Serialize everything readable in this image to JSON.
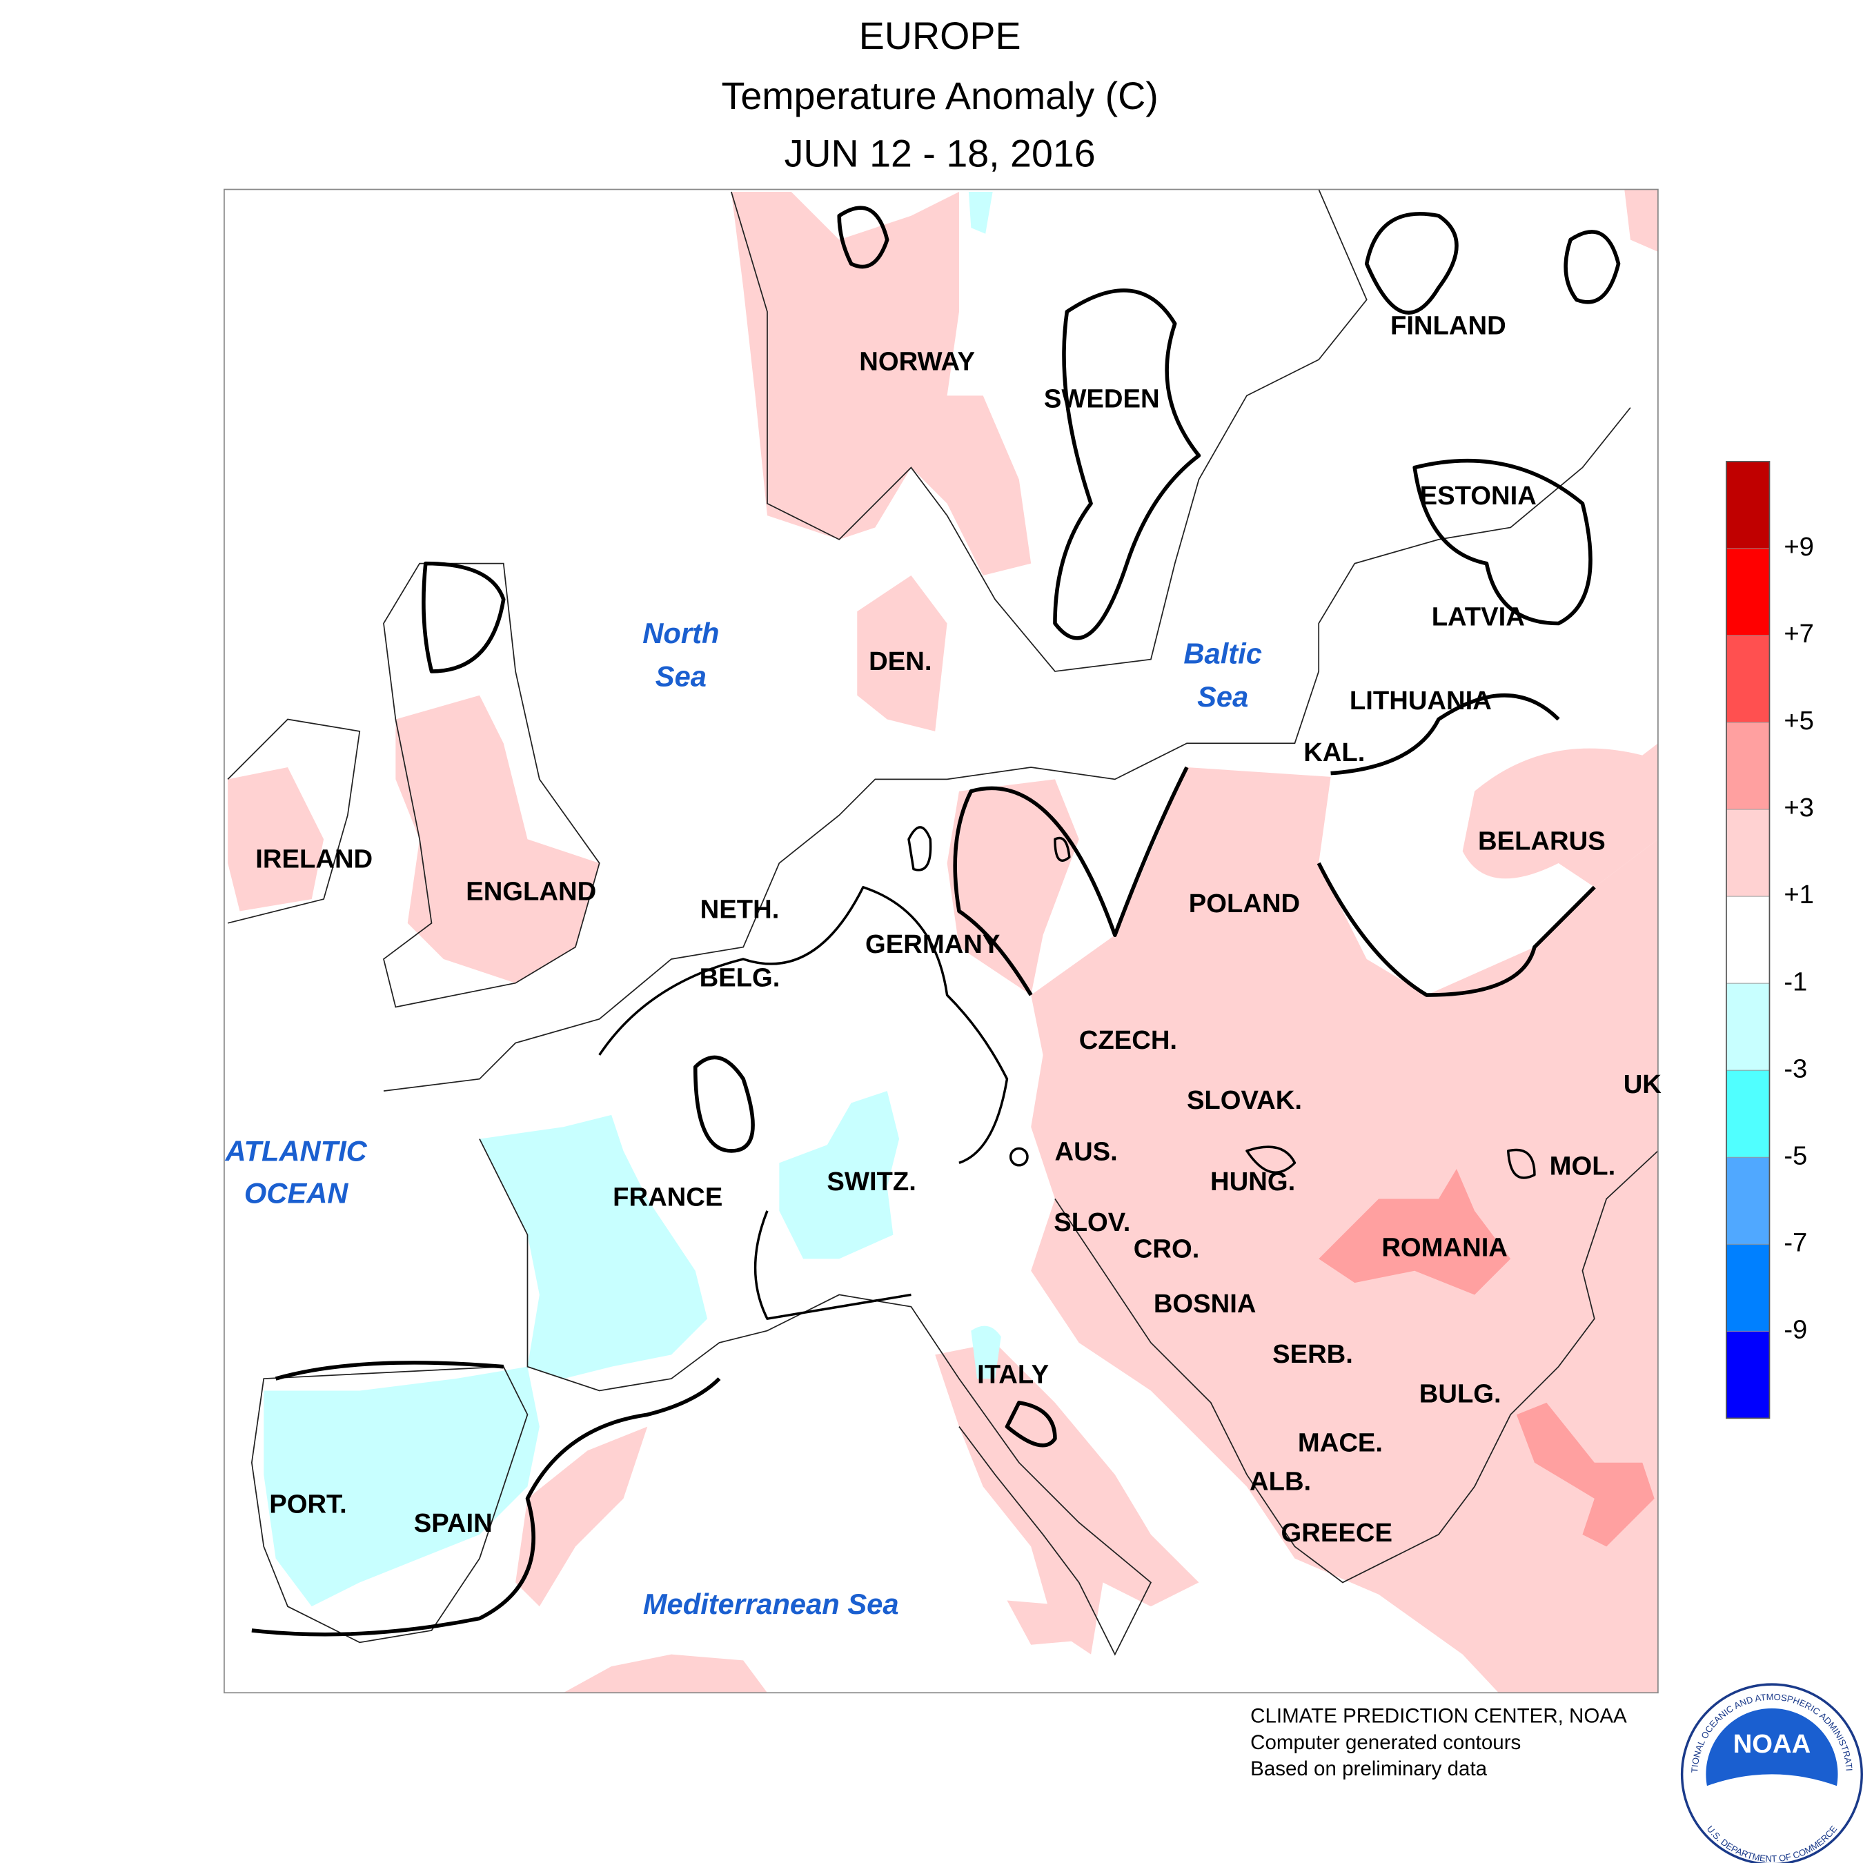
{
  "header": {
    "title": "EUROPE",
    "subtitle": "Temperature Anomaly (C)",
    "dates": "JUN 12 - 18, 2016"
  },
  "map": {
    "country_labels": [
      "NORWAY",
      "SWEDEN",
      "FINLAND",
      "ESTONIA",
      "LATVIA",
      "LITHUANIA",
      "KAL.",
      "BELARUS",
      "POLAND",
      "IRELAND",
      "ENGLAND",
      "NETH.",
      "BELG.",
      "GERMANY",
      "DEN.",
      "CZECH.",
      "SLOVAK.",
      "UK",
      "MOL.",
      "AUS.",
      "HUNG.",
      "SWITZ.",
      "FRANCE",
      "SLOV.",
      "CRO.",
      "ROMANIA",
      "BOSNIA",
      "SERB.",
      "ITALY",
      "BULG.",
      "MACE.",
      "ALB.",
      "GREECE",
      "PORT.",
      "SPAIN"
    ],
    "sea_labels": [
      "North",
      "Sea",
      "Baltic",
      "Sea",
      "ATLANTIC",
      "OCEAN",
      "Mediterranean Sea"
    ]
  },
  "legend": {
    "colors": [
      "#c00000",
      "#ff0000",
      "#ff5050",
      "#ffa0a0",
      "#ffd2d2",
      "#ffffff",
      "#c8ffff",
      "#50ffff",
      "#50a8ff",
      "#0080ff",
      "#0000ff"
    ],
    "ticks": [
      "+9",
      "+7",
      "+5",
      "+3",
      "+1",
      "-1",
      "-3",
      "-5",
      "-7",
      "-9"
    ]
  },
  "footer": {
    "lines": [
      "CLIMATE PREDICTION CENTER, NOAA",
      "Computer generated contours",
      "Based on preliminary data"
    ]
  },
  "logo": {
    "text": "NOAA",
    "ring_top": "NATIONAL OCEANIC AND ATMOSPHERIC ADMINISTRATION",
    "ring_bottom": "U.S. DEPARTMENT OF COMMERCE"
  }
}
